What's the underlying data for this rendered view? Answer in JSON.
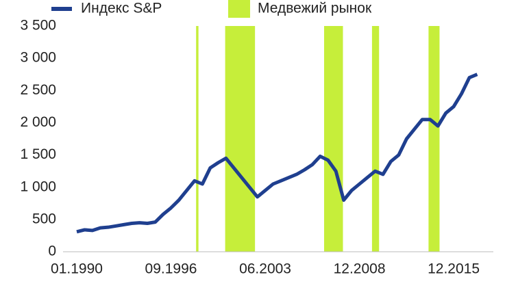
{
  "chart_data": {
    "type": "line",
    "categories": [
      "01.1990",
      null,
      null,
      null,
      null,
      null,
      null,
      null,
      null,
      null,
      null,
      null,
      "09.1996",
      null,
      null,
      null,
      null,
      null,
      null,
      null,
      null,
      null,
      null,
      null,
      "06.2003",
      null,
      null,
      null,
      null,
      null,
      null,
      null,
      null,
      null,
      null,
      null,
      "12.2008",
      null,
      null,
      null,
      null,
      null,
      null,
      null,
      null,
      null,
      null,
      null,
      "12.2015",
      null,
      null,
      null
    ],
    "series": [
      {
        "name": "Индекс S&P",
        "color": "#1f3f8f",
        "values": [
          310,
          340,
          330,
          370,
          380,
          400,
          420,
          440,
          450,
          440,
          460,
          580,
          680,
          800,
          950,
          1100,
          1050,
          1300,
          1380,
          1450,
          1300,
          1150,
          1000,
          850,
          950,
          1050,
          1100,
          1150,
          1200,
          1270,
          1350,
          1480,
          1420,
          1250,
          800,
          950,
          1050,
          1150,
          1250,
          1200,
          1400,
          1500,
          1750,
          1900,
          2050,
          2050,
          1950,
          2150,
          2250,
          2450,
          2700,
          2750
        ]
      },
      {
        "name": "Медвежий рынок",
        "color": "#c6ee3a",
        "kind": "band",
        "ranges": [
          [
            15.2,
            15.5
          ],
          [
            18.9,
            22.7
          ],
          [
            31.5,
            33.9
          ],
          [
            37.6,
            38.5
          ],
          [
            44.8,
            46.2
          ]
        ]
      }
    ],
    "ylim": [
      0,
      3500
    ],
    "yticks": [
      0,
      500,
      {
        "value": 1000,
        "label": "1 000"
      },
      {
        "value": 1500,
        "label": "1 500"
      },
      {
        "value": 2000,
        "label": "2 000"
      },
      {
        "value": 2500,
        "label": "2 500"
      },
      {
        "value": 3000,
        "label": "3 000"
      },
      {
        "value": 3500,
        "label": "3 500"
      }
    ],
    "grid": false,
    "legend": "top"
  }
}
